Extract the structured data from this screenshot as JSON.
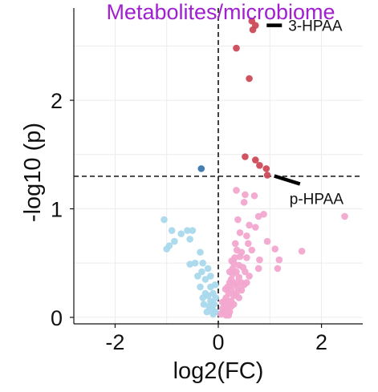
{
  "chart_data": {
    "type": "scatter",
    "title": "Metabolites/microbiome",
    "xlabel": "log2(FC)",
    "ylabel": "-log10 (p)",
    "xlim": [
      -2.8,
      2.8
    ],
    "ylim": [
      -0.06,
      2.85
    ],
    "x_ticks": [
      -2,
      0,
      2
    ],
    "y_ticks": [
      0,
      1,
      2
    ],
    "grid": true,
    "reference_lines": {
      "vertical_x": 0,
      "horizontal_y": 1.3
    },
    "colors": {
      "title": "#a020d0",
      "up_significant": "#cd4a5a",
      "down_significant": "#3a78b0",
      "up_nonsignificant": "#f2a6cf",
      "down_nonsignificant": "#a9d9ec",
      "grid": "#ececec"
    },
    "annotations": [
      {
        "label": "3-HPAA",
        "x": 0.72,
        "y": 2.69
      },
      {
        "label": "p-HPAA",
        "x": 0.93,
        "y": 1.31
      }
    ],
    "series": [
      {
        "points": [
          [
            0.72,
            2.69
          ],
          [
            0.65,
            2.73
          ],
          [
            0.67,
            2.65
          ],
          [
            0.35,
            2.48
          ],
          [
            0.6,
            2.2
          ],
          [
            0.52,
            1.48
          ],
          [
            0.72,
            1.45
          ],
          [
            0.93,
            1.37
          ],
          [
            0.95,
            1.31
          ],
          [
            0.8,
            1.4
          ]
        ]
      },
      {
        "points": [
          [
            -0.33,
            1.37
          ]
        ]
      },
      {
        "points": [
          [
            0.35,
            1.17
          ],
          [
            0.52,
            1.13
          ],
          [
            0.7,
            1.12
          ],
          [
            0.5,
            1.06
          ],
          [
            0.78,
            0.93
          ],
          [
            0.88,
            0.95
          ],
          [
            2.45,
            0.93
          ],
          [
            0.95,
            0.7
          ],
          [
            1.62,
            0.61
          ],
          [
            1.1,
            0.63
          ],
          [
            1.18,
            0.53
          ],
          [
            0.55,
            0.75
          ],
          [
            0.72,
            0.83
          ],
          [
            0.38,
            0.9
          ],
          [
            0.58,
            0.68
          ],
          [
            0.8,
            0.53
          ],
          [
            0.6,
            0.85
          ],
          [
            0.55,
            0.55
          ],
          [
            1.15,
            0.45
          ],
          [
            0.78,
            0.45
          ],
          [
            0.45,
            0.6
          ],
          [
            0.65,
            0.62
          ],
          [
            0.42,
            0.78
          ],
          [
            0.4,
            0.48
          ],
          [
            0.52,
            0.42
          ],
          [
            0.45,
            0.32
          ],
          [
            0.3,
            0.5
          ],
          [
            0.28,
            0.4
          ],
          [
            0.35,
            0.42
          ],
          [
            0.4,
            0.37
          ],
          [
            0.5,
            0.3
          ],
          [
            0.25,
            0.35
          ],
          [
            0.3,
            0.3
          ],
          [
            0.35,
            0.32
          ],
          [
            0.45,
            0.25
          ],
          [
            0.25,
            0.25
          ],
          [
            0.3,
            0.2
          ],
          [
            0.35,
            0.22
          ],
          [
            0.4,
            0.18
          ],
          [
            0.2,
            0.22
          ],
          [
            0.25,
            0.15
          ],
          [
            0.3,
            0.12
          ],
          [
            0.15,
            0.18
          ],
          [
            0.2,
            0.12
          ],
          [
            0.25,
            0.1
          ],
          [
            0.12,
            0.1
          ],
          [
            0.18,
            0.08
          ],
          [
            0.22,
            0.05
          ],
          [
            0.1,
            0.05
          ],
          [
            0.15,
            0.02
          ],
          [
            0.2,
            0.02
          ],
          [
            0.08,
            0.08
          ],
          [
            0.05,
            0.03
          ],
          [
            0.12,
            0.15
          ],
          [
            0.18,
            0.28
          ],
          [
            0.22,
            0.32
          ],
          [
            0.38,
            0.27
          ],
          [
            0.28,
            0.45
          ],
          [
            0.32,
            0.55
          ],
          [
            0.36,
            0.62
          ],
          [
            0.42,
            0.56
          ],
          [
            0.26,
            0.52
          ],
          [
            0.22,
            0.42
          ],
          [
            0.33,
            0.68
          ],
          [
            0.6,
            0.38
          ],
          [
            0.48,
            0.46
          ],
          [
            0.55,
            0.32
          ],
          [
            0.14,
            0.26
          ],
          [
            0.08,
            0.14
          ]
        ]
      },
      {
        "points": [
          [
            -1.05,
            0.9
          ],
          [
            -0.9,
            0.8
          ],
          [
            -0.72,
            0.77
          ],
          [
            -0.6,
            0.8
          ],
          [
            -0.5,
            0.8
          ],
          [
            -0.95,
            0.66
          ],
          [
            -1.0,
            0.63
          ],
          [
            -0.85,
            0.7
          ],
          [
            -0.55,
            0.72
          ],
          [
            -0.35,
            0.6
          ],
          [
            -0.45,
            0.5
          ],
          [
            -0.55,
            0.49
          ],
          [
            -0.3,
            0.5
          ],
          [
            -0.2,
            0.45
          ],
          [
            -0.4,
            0.38
          ],
          [
            -0.25,
            0.35
          ],
          [
            -0.35,
            0.28
          ],
          [
            -0.15,
            0.38
          ],
          [
            -0.25,
            0.22
          ],
          [
            -0.3,
            0.18
          ],
          [
            -0.2,
            0.2
          ],
          [
            -0.15,
            0.15
          ],
          [
            -0.1,
            0.22
          ],
          [
            -0.18,
            0.1
          ],
          [
            -0.12,
            0.08
          ],
          [
            -0.08,
            0.12
          ],
          [
            -0.05,
            0.18
          ],
          [
            -0.22,
            0.05
          ],
          [
            -0.1,
            0.03
          ],
          [
            -0.05,
            0.05
          ],
          [
            -0.28,
            0.12
          ],
          [
            -0.15,
            0.28
          ],
          [
            -0.06,
            0.3
          ],
          [
            -0.32,
            0.42
          ]
        ]
      }
    ]
  }
}
